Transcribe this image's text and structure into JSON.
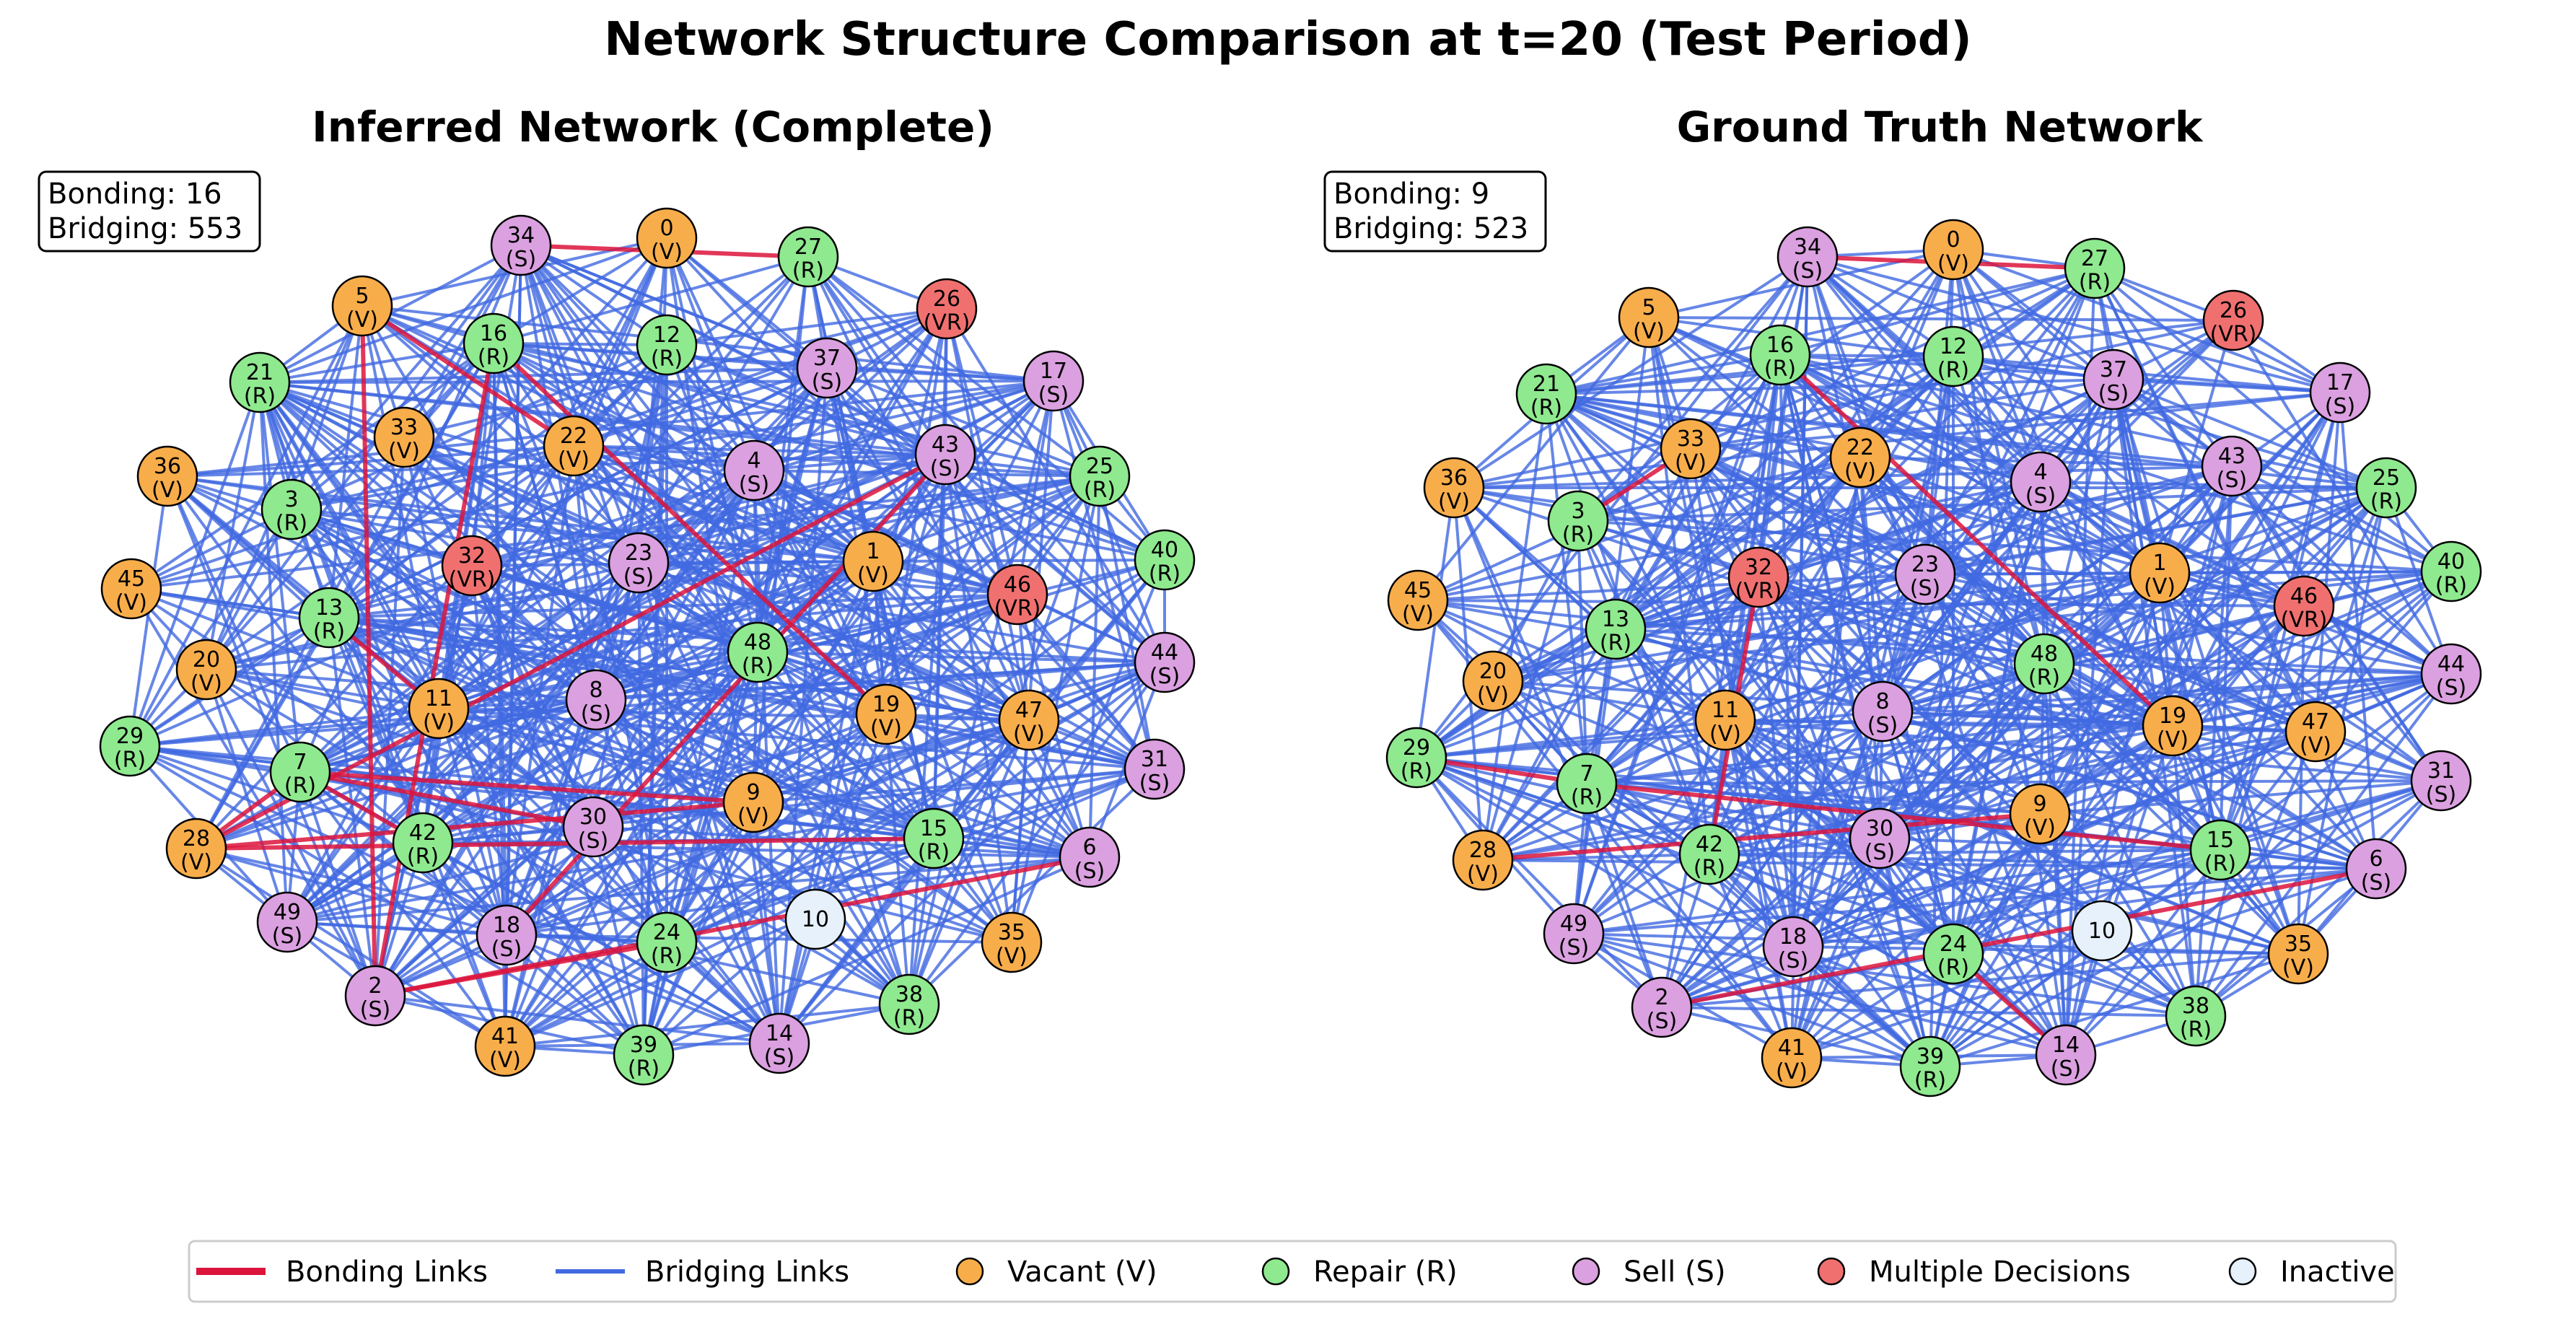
{
  "title": "Network Structure Comparison at t=20 (Test Period)",
  "colors": {
    "bonding": "#dc143c",
    "bridging": "#4169e1",
    "V": "#f8ad4b",
    "R": "#8fe98f",
    "S": "#dba0e0",
    "VR": "#f07070",
    "inactive": "#e6f1fb"
  },
  "panels": [
    {
      "title": "Inferred Network (Complete)",
      "stats": {
        "bonding_label": "Bonding: 16",
        "bridging_label": "Bridging: 553"
      },
      "bonding_links": [
        [
          34,
          27
        ],
        [
          5,
          2
        ],
        [
          5,
          22
        ],
        [
          16,
          2
        ],
        [
          16,
          19
        ],
        [
          7,
          28
        ],
        [
          7,
          30
        ],
        [
          7,
          9
        ],
        [
          28,
          43
        ],
        [
          28,
          9
        ],
        [
          28,
          15
        ],
        [
          42,
          7
        ],
        [
          2,
          6
        ],
        [
          2,
          24
        ],
        [
          18,
          43
        ],
        [
          13,
          11
        ]
      ],
      "bridging_link_count": 553
    },
    {
      "title": "Ground Truth Network",
      "stats": {
        "bonding_label": "Bonding: 9",
        "bridging_label": "Bridging: 523"
      },
      "bonding_links": [
        [
          34,
          27
        ],
        [
          29,
          7
        ],
        [
          28,
          9
        ],
        [
          7,
          15
        ],
        [
          2,
          6
        ],
        [
          16,
          19
        ],
        [
          24,
          14
        ],
        [
          32,
          42
        ],
        [
          3,
          33
        ]
      ],
      "bridging_link_count": 523
    }
  ],
  "nodes": [
    {
      "id": 0,
      "label": "0",
      "type": "V"
    },
    {
      "id": 1,
      "label": "1",
      "type": "V"
    },
    {
      "id": 2,
      "label": "2",
      "type": "S"
    },
    {
      "id": 3,
      "label": "3",
      "type": "R"
    },
    {
      "id": 4,
      "label": "4",
      "type": "S"
    },
    {
      "id": 5,
      "label": "5",
      "type": "V"
    },
    {
      "id": 6,
      "label": "6",
      "type": "S"
    },
    {
      "id": 7,
      "label": "7",
      "type": "R"
    },
    {
      "id": 8,
      "label": "8",
      "type": "S"
    },
    {
      "id": 9,
      "label": "9",
      "type": "V"
    },
    {
      "id": 10,
      "label": "10",
      "type": "inactive"
    },
    {
      "id": 11,
      "label": "11",
      "type": "V"
    },
    {
      "id": 12,
      "label": "12",
      "type": "R"
    },
    {
      "id": 13,
      "label": "13",
      "type": "R"
    },
    {
      "id": 14,
      "label": "14",
      "type": "S"
    },
    {
      "id": 15,
      "label": "15",
      "type": "R"
    },
    {
      "id": 16,
      "label": "16",
      "type": "R"
    },
    {
      "id": 17,
      "label": "17",
      "type": "S"
    },
    {
      "id": 18,
      "label": "18",
      "type": "S"
    },
    {
      "id": 19,
      "label": "19",
      "type": "V"
    },
    {
      "id": 20,
      "label": "20",
      "type": "V"
    },
    {
      "id": 21,
      "label": "21",
      "type": "R"
    },
    {
      "id": 22,
      "label": "22",
      "type": "V"
    },
    {
      "id": 23,
      "label": "23",
      "type": "S"
    },
    {
      "id": 24,
      "label": "24",
      "type": "R"
    },
    {
      "id": 25,
      "label": "25",
      "type": "R"
    },
    {
      "id": 26,
      "label": "26",
      "type": "VR"
    },
    {
      "id": 27,
      "label": "27",
      "type": "R"
    },
    {
      "id": 28,
      "label": "28",
      "type": "V"
    },
    {
      "id": 29,
      "label": "29",
      "type": "R"
    },
    {
      "id": 30,
      "label": "30",
      "type": "S"
    },
    {
      "id": 31,
      "label": "31",
      "type": "S"
    },
    {
      "id": 32,
      "label": "32",
      "type": "VR"
    },
    {
      "id": 33,
      "label": "33",
      "type": "V"
    },
    {
      "id": 34,
      "label": "34",
      "type": "S"
    },
    {
      "id": 35,
      "label": "35",
      "type": "V"
    },
    {
      "id": 36,
      "label": "36",
      "type": "V"
    },
    {
      "id": 37,
      "label": "37",
      "type": "S"
    },
    {
      "id": 38,
      "label": "38",
      "type": "R"
    },
    {
      "id": 39,
      "label": "39",
      "type": "R"
    },
    {
      "id": 40,
      "label": "40",
      "type": "R"
    },
    {
      "id": 41,
      "label": "41",
      "type": "V"
    },
    {
      "id": 42,
      "label": "42",
      "type": "R"
    },
    {
      "id": 43,
      "label": "43",
      "type": "S"
    },
    {
      "id": 44,
      "label": "44",
      "type": "S"
    },
    {
      "id": 45,
      "label": "45",
      "type": "V"
    },
    {
      "id": 46,
      "label": "46",
      "type": "VR"
    },
    {
      "id": 47,
      "label": "47",
      "type": "V"
    },
    {
      "id": 48,
      "label": "48",
      "type": "R"
    },
    {
      "id": 49,
      "label": "49",
      "type": "S"
    }
  ],
  "type_labels": {
    "V": "(V)",
    "R": "(R)",
    "S": "(S)",
    "VR": "(VR)",
    "inactive": ""
  },
  "legend": [
    {
      "key": "bonding",
      "kind": "line",
      "label": "Bonding Links"
    },
    {
      "key": "bridging",
      "kind": "line",
      "label": "Bridging Links"
    },
    {
      "key": "V",
      "kind": "marker",
      "label": "Vacant (V)"
    },
    {
      "key": "R",
      "kind": "marker",
      "label": "Repair (R)"
    },
    {
      "key": "S",
      "kind": "marker",
      "label": "Sell (S)"
    },
    {
      "key": "VR",
      "kind": "marker",
      "label": "Multiple Decisions"
    },
    {
      "key": "inactive",
      "kind": "marker",
      "label": "Inactive"
    }
  ]
}
